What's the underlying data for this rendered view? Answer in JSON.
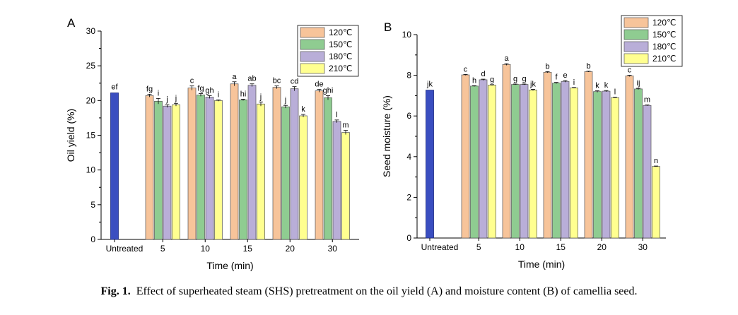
{
  "caption": {
    "label": "Fig. 1.",
    "text": "Effect of superheated steam (SHS) pretreatment on the oil yield (A) and moisture content (B) of camellia seed."
  },
  "colors": {
    "untreated": "#3a4ec0",
    "series": [
      "#f7c49a",
      "#8fcc91",
      "#b9aed8",
      "#ffff90"
    ]
  },
  "chart_data": [
    {
      "type": "bar",
      "panel_label": "A",
      "xlabel": "Time (min)",
      "ylabel": "Oil yield (%)",
      "ylim": [
        0,
        30
      ],
      "yticks": [
        0,
        5,
        10,
        15,
        20,
        25,
        30
      ],
      "legend_position": "top-right",
      "untreated": {
        "label": "Untreated",
        "value": 21.1,
        "letter": "ef"
      },
      "categories": [
        "5",
        "10",
        "15",
        "20",
        "30"
      ],
      "series": [
        {
          "name": "120℃",
          "values": [
            20.7,
            21.8,
            22.4,
            21.9,
            21.4
          ],
          "errors": [
            0.2,
            0.3,
            0.3,
            0.2,
            0.2
          ],
          "letters": [
            "fg",
            "c",
            "a",
            "bc",
            "de"
          ]
        },
        {
          "name": "150℃",
          "values": [
            19.9,
            20.8,
            20.1,
            19.1,
            20.4
          ],
          "errors": [
            0.4,
            0.2,
            0.1,
            0.2,
            0.3
          ],
          "letters": [
            "i",
            "fg",
            "hi",
            "j",
            "ghi"
          ]
        },
        {
          "name": "180℃",
          "values": [
            19.2,
            20.5,
            22.2,
            21.7,
            17.0
          ],
          "errors": [
            0.2,
            0.2,
            0.2,
            0.3,
            0.2
          ],
          "letters": [
            "j",
            "gh",
            "ab",
            "cd",
            "l"
          ]
        },
        {
          "name": "210℃",
          "values": [
            19.4,
            20.0,
            19.5,
            17.8,
            15.4
          ],
          "errors": [
            0.2,
            0.1,
            0.3,
            0.2,
            0.3
          ],
          "letters": [
            "j",
            "i",
            "j",
            "k",
            "m"
          ]
        }
      ]
    },
    {
      "type": "bar",
      "panel_label": "B",
      "xlabel": "Time (min)",
      "ylabel": "Seed moisture (%)",
      "ylim": [
        0,
        10
      ],
      "yticks": [
        0,
        2,
        4,
        6,
        8,
        10
      ],
      "legend_position": "top-right",
      "untreated": {
        "label": "Untreated",
        "value": 7.27,
        "letter": "jk"
      },
      "categories": [
        "5",
        "10",
        "15",
        "20",
        "30"
      ],
      "series": [
        {
          "name": "120℃",
          "values": [
            8.02,
            8.53,
            8.15,
            8.18,
            7.97
          ],
          "errors": [
            0.02,
            0.04,
            0.03,
            0.02,
            0.03
          ],
          "letters": [
            "c",
            "a",
            "b",
            "b",
            "c"
          ]
        },
        {
          "name": "150℃",
          "values": [
            7.47,
            7.55,
            7.62,
            7.2,
            7.33
          ],
          "errors": [
            0.02,
            0.02,
            0.03,
            0.04,
            0.03
          ],
          "letters": [
            "h",
            "g",
            "f",
            "k",
            "ij"
          ]
        },
        {
          "name": "180℃",
          "values": [
            7.78,
            7.55,
            7.7,
            7.22,
            6.52
          ],
          "errors": [
            0.03,
            0.02,
            0.04,
            0.03,
            0.02
          ],
          "letters": [
            "d",
            "g",
            "e",
            "k",
            "m"
          ]
        },
        {
          "name": "210℃",
          "values": [
            7.52,
            7.28,
            7.38,
            6.9,
            3.52
          ],
          "errors": [
            0.02,
            0.03,
            0.02,
            0.02,
            0.02
          ],
          "letters": [
            "g",
            "jk",
            "i",
            "l",
            "n"
          ]
        }
      ]
    }
  ]
}
